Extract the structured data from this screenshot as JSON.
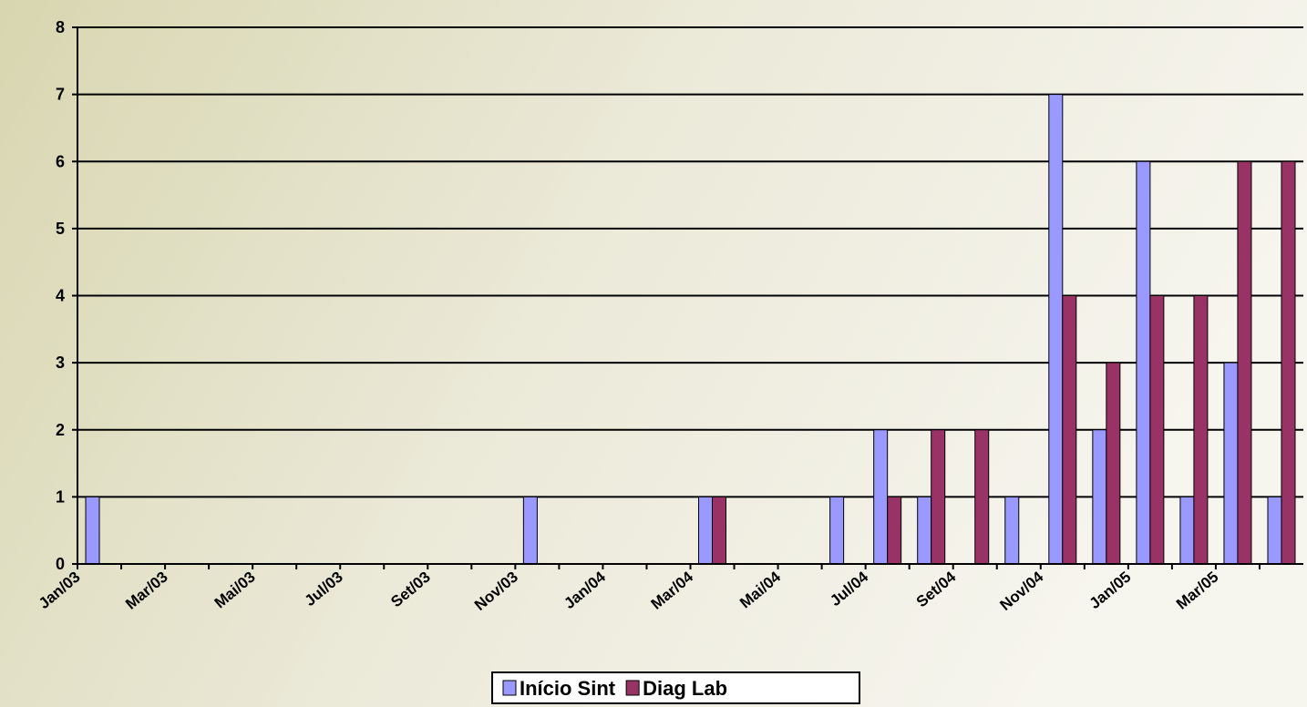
{
  "chart_data": {
    "type": "bar",
    "categories": [
      "Jan/03",
      null,
      "Mar/03",
      null,
      "Mai/03",
      null,
      "Jul/03",
      null,
      "Set/03",
      null,
      "Nov/03",
      null,
      "Jan/04",
      null,
      "Mar/04",
      null,
      "Mai/04",
      null,
      "Jul/04",
      null,
      "Set/04",
      null,
      "Nov/04",
      null,
      "Jan/05",
      null,
      "Mar/05",
      null
    ],
    "series": [
      {
        "name": "Início Sint",
        "color": "#9999ff",
        "values": [
          1,
          0,
          0,
          0,
          0,
          0,
          0,
          0,
          0,
          0,
          1,
          0,
          0,
          0,
          1,
          0,
          0,
          1,
          2,
          1,
          0,
          1,
          7,
          2,
          6,
          1,
          3,
          1
        ]
      },
      {
        "name": "Diag Lab",
        "color": "#993366",
        "values": [
          0,
          0,
          0,
          0,
          0,
          0,
          0,
          0,
          0,
          0,
          0,
          0,
          0,
          0,
          1,
          0,
          0,
          0,
          1,
          2,
          2,
          0,
          4,
          3,
          4,
          4,
          6,
          6
        ]
      }
    ],
    "ylim": [
      0,
      8
    ],
    "yticks": [
      0,
      1,
      2,
      3,
      4,
      5,
      6,
      7,
      8
    ],
    "grid": true,
    "legend": "bottom"
  }
}
